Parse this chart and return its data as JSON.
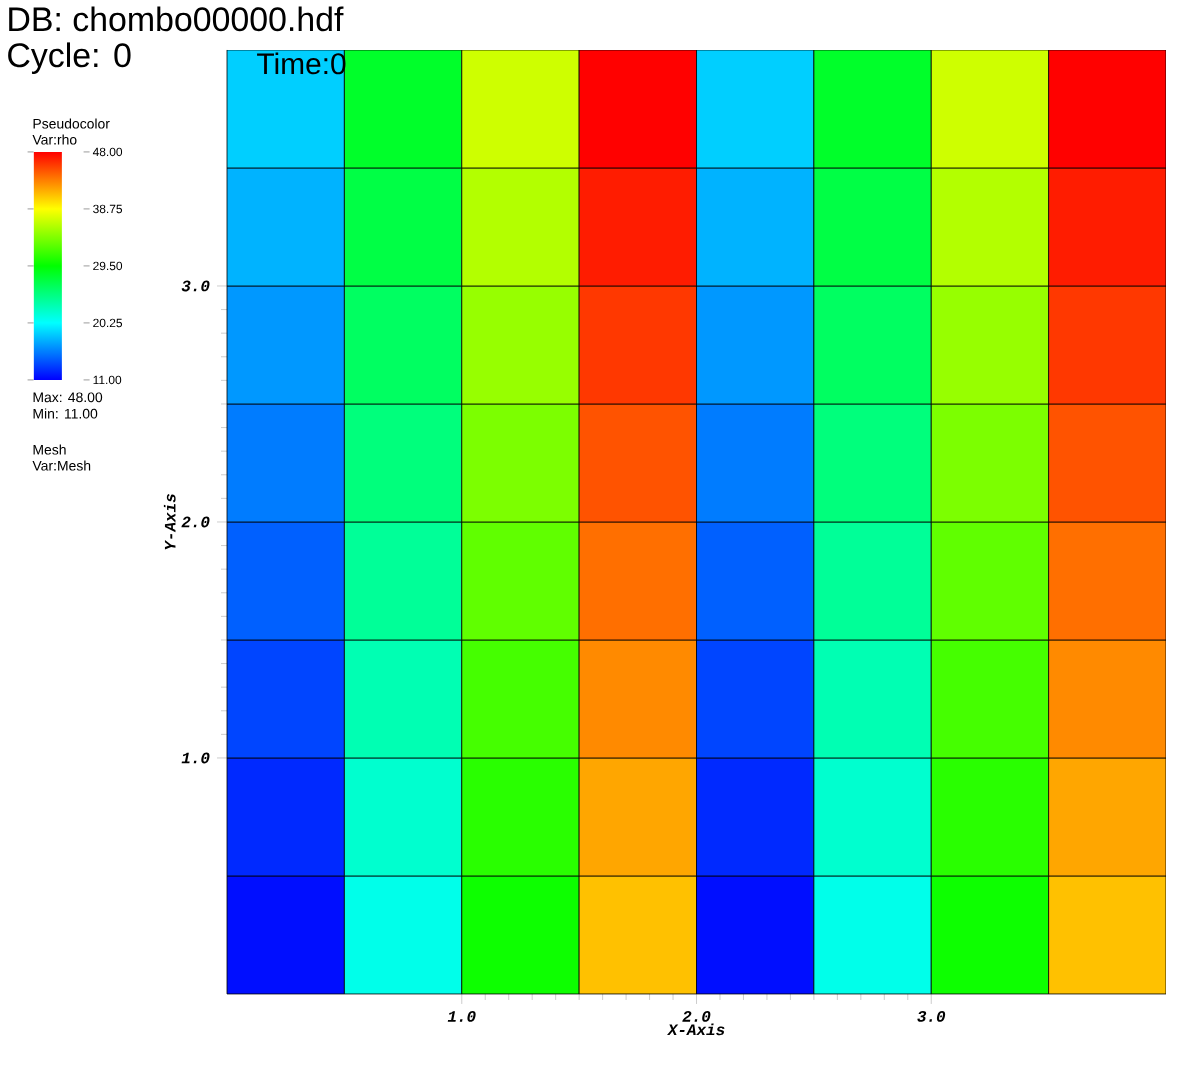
{
  "chart_data": {
    "type": "heatmap",
    "title": "DB: chombo00000.hdf",
    "subtitle": "Cycle: 0",
    "annotations": [
      "Time:0",
      "Pseudocolor",
      "Var:rho",
      "Max: 48.00",
      "Min: 11.00",
      "Mesh",
      "Var:Mesh"
    ],
    "xlabel": "X-Axis",
    "ylabel": "Y-Axis",
    "cells": [
      [
        18.5,
        28,
        37,
        48,
        18.5,
        28,
        37,
        48
      ],
      [
        17.5,
        27,
        36,
        47,
        17.5,
        27,
        36,
        47
      ],
      [
        16.5,
        26,
        35,
        46,
        16.5,
        26,
        35,
        46
      ],
      [
        15.5,
        25,
        34,
        45,
        15.5,
        25,
        34,
        45
      ],
      [
        14.5,
        24,
        33,
        44,
        14.5,
        24,
        33,
        44
      ],
      [
        13.5,
        23,
        32,
        43,
        13.5,
        23,
        32,
        43
      ],
      [
        12.5,
        22,
        31,
        42,
        12.5,
        22,
        31,
        42
      ],
      [
        11.5,
        21,
        30,
        41,
        11.5,
        21,
        30,
        41
      ]
    ],
    "clim": [
      11,
      48
    ],
    "cticks": [
      {
        "value": 11,
        "label": "11.00"
      },
      {
        "value": 20.25,
        "label": "20.25"
      },
      {
        "value": 29.5,
        "label": "29.50"
      },
      {
        "value": 38.75,
        "label": "38.75"
      },
      {
        "value": 48,
        "label": "48.00"
      }
    ],
    "xlim": [
      0,
      4
    ],
    "ylim": [
      0,
      4
    ],
    "xticks": [
      {
        "value": 1,
        "label": "1.0"
      },
      {
        "value": 2,
        "label": "2.0"
      },
      {
        "value": 3,
        "label": "3.0"
      }
    ],
    "yticks": [
      {
        "value": 1,
        "label": "1.0"
      },
      {
        "value": 2,
        "label": "2.0"
      },
      {
        "value": 3,
        "label": "3.0"
      }
    ]
  }
}
